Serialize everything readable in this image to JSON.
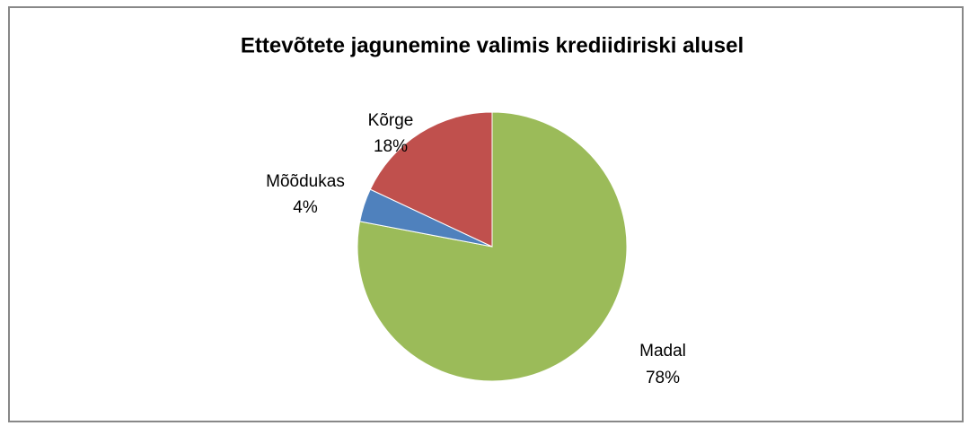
{
  "chart_data": {
    "type": "pie",
    "title": "Ettevõtete jagunemine valimis krediidiriski alusel",
    "categories": [
      "Madal",
      "Mõõdukas",
      "Kõrge"
    ],
    "values": [
      78,
      4,
      18
    ],
    "value_labels": [
      "78%",
      "4%",
      "18%"
    ],
    "colors": [
      "#9bbb59",
      "#4f81bd",
      "#c0504d"
    ]
  }
}
